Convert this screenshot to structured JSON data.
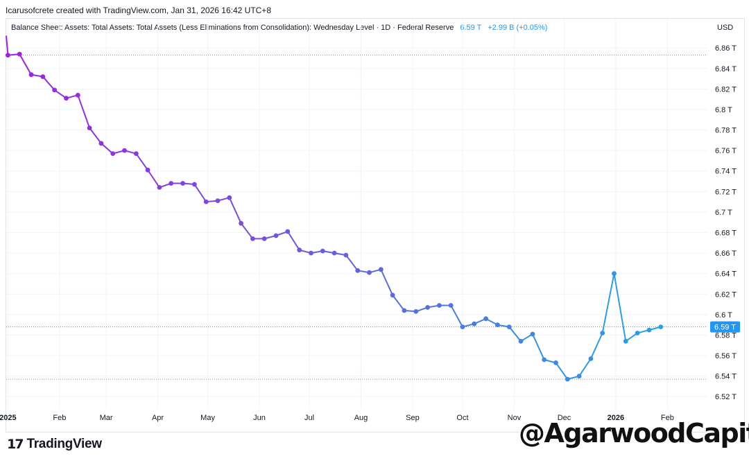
{
  "credit": "Icarusofcrete created with TradingView.com, Jan 31, 2026 16:42 UTC+8",
  "legend": {
    "title": "Balance Sheet: Assets: Total Assets: Total Assets (Less Eliminations from Consolidation): Wednesday Level · 1D · Federal Reserve",
    "last_value": "6.59 T",
    "change": "+2.99 B (+0.05%)"
  },
  "currency": "USD",
  "logo_text": "TradingView",
  "watermark": "@AgarwoodCapital",
  "colors": {
    "start": "#a020e0",
    "mid": "#6a5ce0",
    "end": "#1fa8e8",
    "last_label_bg": "#2196f3"
  },
  "chart_data": {
    "type": "line",
    "y_unit": "T",
    "ylim": [
      6.508,
      6.875
    ],
    "y_ticks": [
      "6.86 T",
      "6.84 T",
      "6.82 T",
      "6.8 T",
      "6.78 T",
      "6.76 T",
      "6.74 T",
      "6.72 T",
      "6.7 T",
      "6.68 T",
      "6.66 T",
      "6.64 T",
      "6.62 T",
      "6.6 T",
      "6.58 T",
      "6.56 T",
      "6.54 T",
      "6.52 T"
    ],
    "x_labels": [
      "2025",
      "Feb",
      "Mar",
      "Apr",
      "May",
      "Jun",
      "Jul",
      "Aug",
      "Sep",
      "Oct",
      "Nov",
      "Dec",
      "2026",
      "Feb"
    ],
    "x_label_dates": [
      "2025-01-01",
      "2025-02-01",
      "2025-03-01",
      "2025-04-01",
      "2025-05-01",
      "2025-06-01",
      "2025-07-01",
      "2025-08-01",
      "2025-09-01",
      "2025-10-01",
      "2025-11-01",
      "2025-12-01",
      "2026-01-01",
      "2026-02-01"
    ],
    "xlim": [
      "2024-12-31",
      "2026-02-25"
    ],
    "dates": [
      "2025-01-01",
      "2025-01-08",
      "2025-01-15",
      "2025-01-22",
      "2025-01-29",
      "2025-02-05",
      "2025-02-12",
      "2025-02-19",
      "2025-02-26",
      "2025-03-05",
      "2025-03-12",
      "2025-03-19",
      "2025-03-26",
      "2025-04-02",
      "2025-04-09",
      "2025-04-16",
      "2025-04-23",
      "2025-04-30",
      "2025-05-07",
      "2025-05-14",
      "2025-05-21",
      "2025-05-28",
      "2025-06-04",
      "2025-06-11",
      "2025-06-18",
      "2025-06-25",
      "2025-07-02",
      "2025-07-09",
      "2025-07-16",
      "2025-07-23",
      "2025-07-30",
      "2025-08-06",
      "2025-08-13",
      "2025-08-20",
      "2025-08-27",
      "2025-09-03",
      "2025-09-10",
      "2025-09-17",
      "2025-09-24",
      "2025-10-01",
      "2025-10-08",
      "2025-10-15",
      "2025-10-22",
      "2025-10-29",
      "2025-11-05",
      "2025-11-12",
      "2025-11-19",
      "2025-11-26",
      "2025-12-03",
      "2025-12-10",
      "2025-12-17",
      "2025-12-24",
      "2025-12-31",
      "2026-01-07",
      "2026-01-14",
      "2026-01-21",
      "2026-01-28"
    ],
    "values": [
      6.853,
      6.854,
      6.834,
      6.832,
      6.819,
      6.811,
      6.814,
      6.782,
      6.767,
      6.757,
      6.76,
      6.757,
      6.741,
      6.724,
      6.728,
      6.728,
      6.727,
      6.71,
      6.711,
      6.714,
      6.689,
      6.674,
      6.674,
      6.677,
      6.681,
      6.663,
      6.66,
      6.662,
      6.66,
      6.658,
      6.643,
      6.641,
      6.644,
      6.619,
      6.604,
      6.603,
      6.607,
      6.609,
      6.609,
      6.588,
      6.591,
      6.596,
      6.59,
      6.588,
      6.574,
      6.581,
      6.556,
      6.553,
      6.537,
      6.54,
      6.557,
      6.582,
      6.64,
      6.574,
      6.582,
      6.585,
      6.588
    ],
    "reference_lines": [
      6.853,
      6.537
    ],
    "last_value_line": 6.588
  }
}
